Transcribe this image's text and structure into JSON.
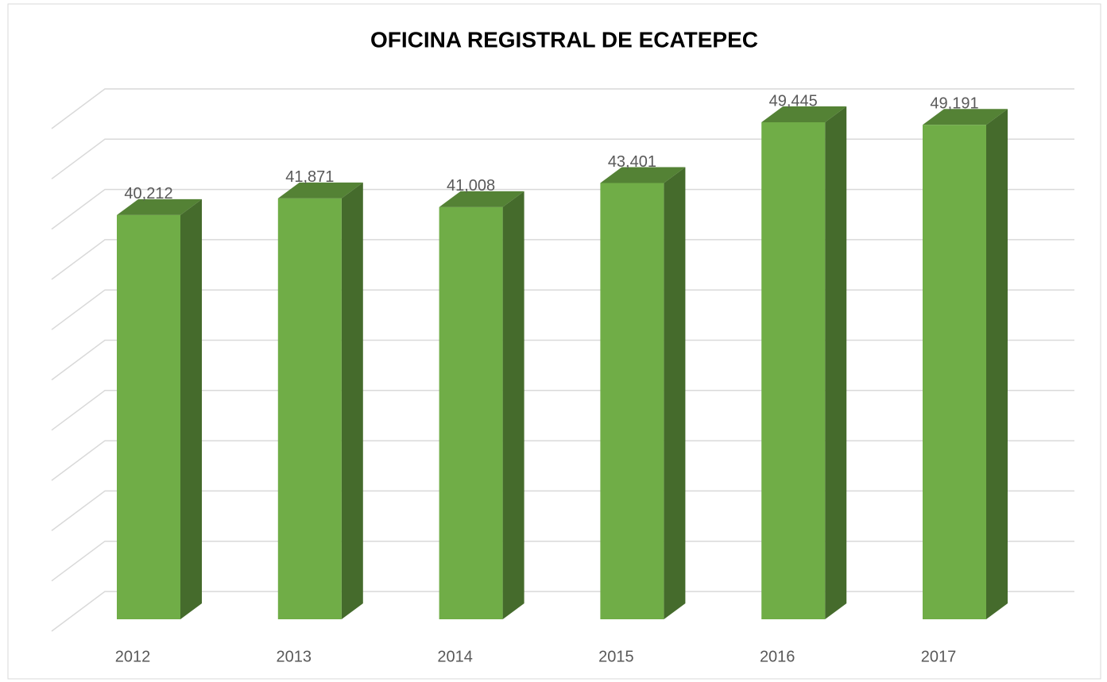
{
  "chart_data": {
    "type": "bar3d",
    "title": "OFICINA REGISTRAL DE ECATEPEC",
    "categories": [
      "2012",
      "2013",
      "2014",
      "2015",
      "2016",
      "2017"
    ],
    "values": [
      40212,
      41871,
      41008,
      43401,
      49445,
      49191
    ],
    "value_labels": [
      "40,212",
      "41,871",
      "41,008",
      "43,401",
      "49,445",
      "49,191"
    ],
    "color": "#70ad47",
    "ylim": [
      0,
      50000
    ],
    "yticks": [
      0,
      5000,
      10000,
      15000,
      20000,
      25000,
      30000,
      35000,
      40000,
      45000,
      50000
    ],
    "grid": true
  }
}
